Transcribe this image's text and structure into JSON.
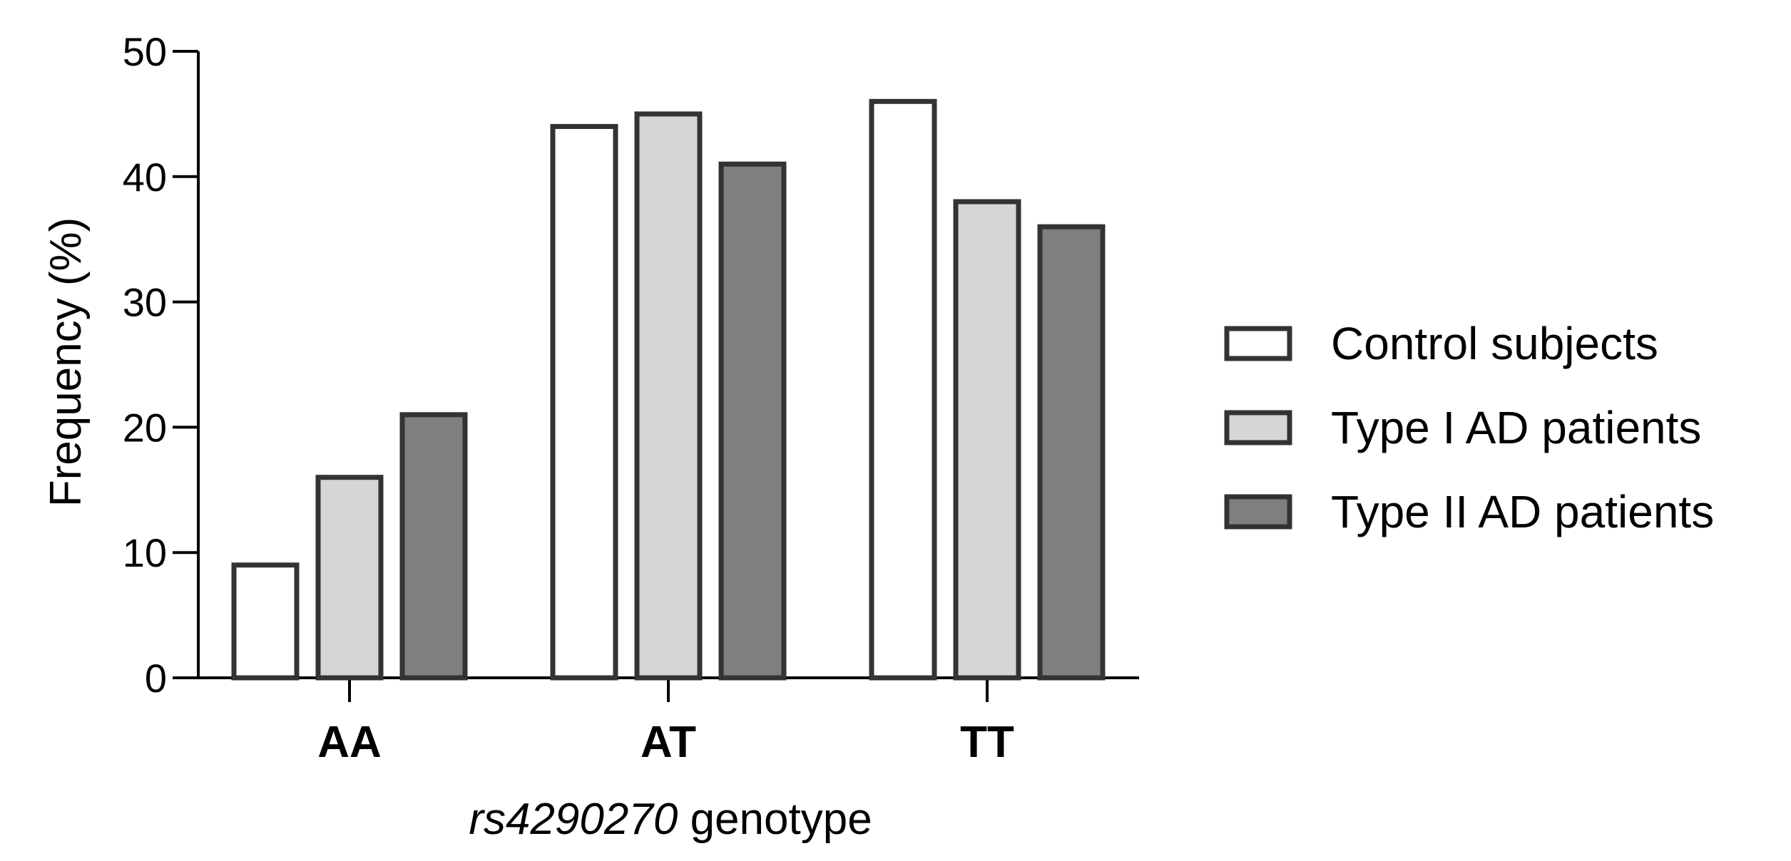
{
  "chart_data": {
    "type": "bar",
    "categories": [
      "AA",
      "AT",
      "TT"
    ],
    "series": [
      {
        "name": "Control subjects",
        "values": [
          9,
          44,
          46
        ],
        "color": "#ffffff"
      },
      {
        "name": "Type I AD patients",
        "values": [
          16,
          45,
          38
        ],
        "color": "#d6d6d6"
      },
      {
        "name": "Type II AD patients",
        "values": [
          21,
          41,
          36
        ],
        "color": "#7f7f7f"
      }
    ],
    "ylabel": "Frequency (%)",
    "xlabel_italic": "rs4290270",
    "xlabel_rest": " genotype",
    "ylim": [
      0,
      50
    ],
    "yticks": [
      0,
      10,
      20,
      30,
      40,
      50
    ],
    "legend_position": "right",
    "bar_stroke": "#333333",
    "axis_color": "#000000"
  }
}
